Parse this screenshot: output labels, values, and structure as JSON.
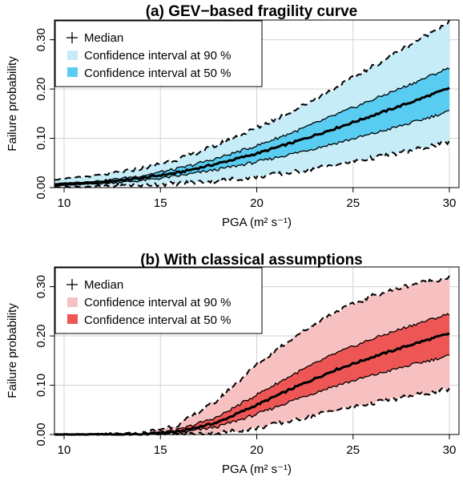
{
  "chart_data": [
    {
      "type": "area",
      "title": "(a) GEV−based fragility curve",
      "xlabel": "PGA (m² s⁻¹)",
      "ylabel": "Failure probability",
      "xlim": [
        9.5,
        30.5
      ],
      "ylim": [
        0,
        0.34
      ],
      "xticks": [
        "10",
        "15",
        "20",
        "25",
        "30"
      ],
      "yticks": [
        "0.00",
        "0.10",
        "0.20",
        "0.30"
      ],
      "grid": true,
      "legend_position": "top-left",
      "legend": [
        "Median",
        "Confidence interval at 90 %",
        "Confidence interval at 50 %"
      ],
      "colors": {
        "ci90": "#c6ecf8",
        "ci50": "#58cdf1"
      },
      "x": [
        9.5,
        12,
        14,
        16,
        18,
        20,
        22,
        24,
        26,
        28,
        30
      ],
      "series": [
        {
          "name": "Median",
          "values": [
            0.005,
            0.011,
            0.019,
            0.031,
            0.049,
            0.069,
            0.093,
            0.119,
            0.146,
            0.173,
            0.202
          ]
        },
        {
          "name": "Confidence interval at 50 %",
          "lower": [
            0.004,
            0.008,
            0.014,
            0.024,
            0.037,
            0.052,
            0.07,
            0.089,
            0.109,
            0.131,
            0.155
          ],
          "upper": [
            0.008,
            0.014,
            0.024,
            0.039,
            0.06,
            0.085,
            0.114,
            0.146,
            0.178,
            0.21,
            0.243
          ]
        },
        {
          "name": "Confidence interval at 90 %",
          "lower": [
            0.001,
            0.003,
            0.005,
            0.009,
            0.014,
            0.022,
            0.032,
            0.046,
            0.06,
            0.075,
            0.093
          ],
          "upper": [
            0.016,
            0.026,
            0.039,
            0.059,
            0.087,
            0.121,
            0.158,
            0.2,
            0.245,
            0.291,
            0.337
          ]
        }
      ]
    },
    {
      "type": "area",
      "title": "(b) With classical assumptions",
      "xlabel": "PGA (m² s⁻¹)",
      "ylabel": "Failure probability",
      "xlim": [
        9.5,
        30.5
      ],
      "ylim": [
        0,
        0.34
      ],
      "xticks": [
        "10",
        "15",
        "20",
        "25",
        "30"
      ],
      "yticks": [
        "0.00",
        "0.10",
        "0.20",
        "0.30"
      ],
      "grid": true,
      "legend_position": "top-left",
      "legend": [
        "Median",
        "Confidence interval at 90 %",
        "Confidence interval at 50 %"
      ],
      "colors": {
        "ci90": "#f8c1c1",
        "ci50": "#ee5656"
      },
      "x": [
        9.5,
        12,
        14,
        16,
        18,
        20,
        22,
        24,
        26,
        28,
        30
      ],
      "series": [
        {
          "name": "Median",
          "values": [
            0,
            0,
            0,
            0.006,
            0.025,
            0.06,
            0.096,
            0.13,
            0.157,
            0.182,
            0.205
          ]
        },
        {
          "name": "Confidence interval at 50 %",
          "lower": [
            0,
            0,
            0,
            0.003,
            0.016,
            0.041,
            0.071,
            0.098,
            0.12,
            0.141,
            0.16
          ],
          "upper": [
            0,
            0,
            0,
            0.01,
            0.036,
            0.081,
            0.124,
            0.163,
            0.194,
            0.221,
            0.245
          ]
        },
        {
          "name": "Confidence interval at 90 %",
          "lower": [
            0,
            0,
            0,
            0,
            0.003,
            0.013,
            0.03,
            0.049,
            0.064,
            0.078,
            0.092
          ],
          "upper": [
            0,
            0,
            0.001,
            0.021,
            0.07,
            0.142,
            0.2,
            0.247,
            0.281,
            0.304,
            0.319
          ]
        }
      ]
    }
  ]
}
